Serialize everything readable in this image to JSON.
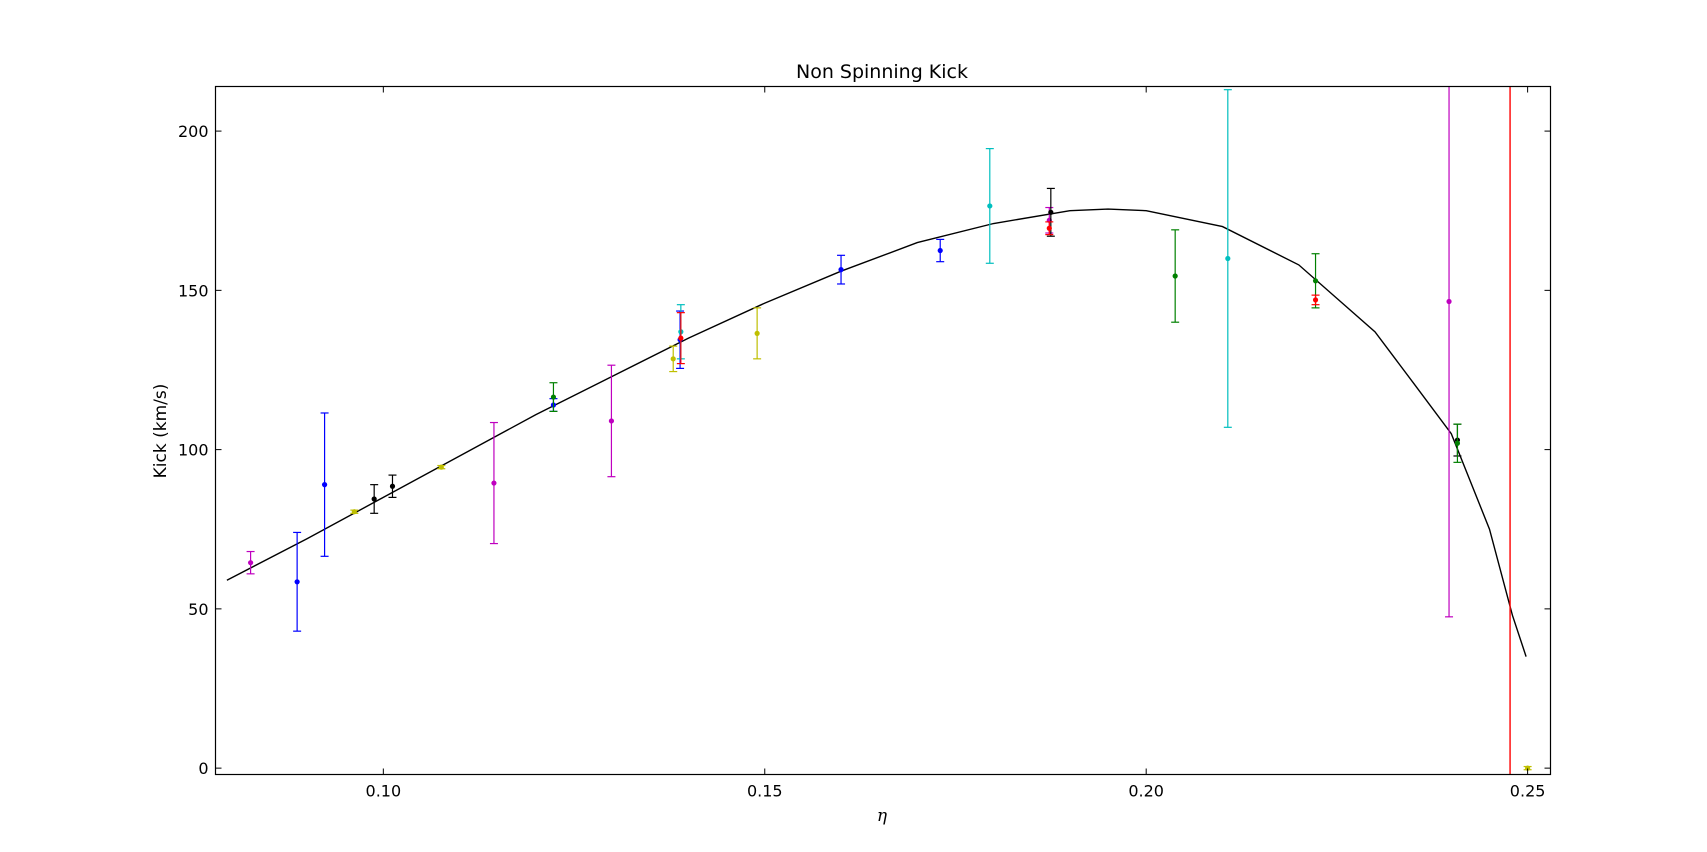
{
  "chart_data": {
    "type": "scatter",
    "title": "Non Spinning Kick",
    "xlabel": "η",
    "ylabel": "Kick (km/s)",
    "xlim": [
      0.078,
      0.253
    ],
    "ylim": [
      -2,
      214
    ],
    "xticks": [
      "0.10",
      "0.15",
      "0.20",
      "0.25"
    ],
    "xtick_values": [
      0.1,
      0.15,
      0.2,
      0.25
    ],
    "yticks": [
      "0",
      "50",
      "100",
      "150",
      "200"
    ],
    "ytick_values": [
      0,
      50,
      100,
      150,
      200
    ],
    "grid": false,
    "fit_curve": {
      "color": "#000000",
      "x": [
        0.0795,
        0.09,
        0.1,
        0.11,
        0.12,
        0.13,
        0.14,
        0.15,
        0.16,
        0.17,
        0.18,
        0.19,
        0.195,
        0.2,
        0.21,
        0.22,
        0.23,
        0.235,
        0.24,
        0.245,
        0.248,
        0.2498
      ],
      "y": [
        59,
        72,
        85,
        98,
        111,
        123,
        135,
        146,
        156,
        165,
        171,
        175,
        175.5,
        175,
        170,
        158,
        137,
        121,
        105,
        75,
        48,
        35
      ]
    },
    "vertical_line": {
      "x": 0.2477,
      "color": "#ff0000"
    },
    "errorbar_series": [
      {
        "color": "#bf00bf",
        "points": [
          {
            "x": 0.0826,
            "y": 64.5,
            "err": 3.5
          },
          {
            "x": 0.1145,
            "y": 89.5,
            "err": 19
          },
          {
            "x": 0.1299,
            "y": 109,
            "err": 17.5
          },
          {
            "x": 0.1873,
            "y": 172,
            "err": 4
          },
          {
            "x": 0.2397,
            "y": 146.5,
            "err": 99
          }
        ]
      },
      {
        "color": "#0000ff",
        "points": [
          {
            "x": 0.0887,
            "y": 58.5,
            "err": 15.5
          },
          {
            "x": 0.0923,
            "y": 89,
            "err": 22.5
          },
          {
            "x": 0.1223,
            "y": 114,
            "err": 2
          },
          {
            "x": 0.1389,
            "y": 134.5,
            "err": 9
          },
          {
            "x": 0.16,
            "y": 156.5,
            "err": 4.5
          },
          {
            "x": 0.173,
            "y": 162.5,
            "err": 3.5
          }
        ]
      },
      {
        "color": "#bfbf00",
        "points": [
          {
            "x": 0.0962,
            "y": 80.5,
            "err": 0.5
          },
          {
            "x": 0.1076,
            "y": 94.5,
            "err": 0.5
          },
          {
            "x": 0.138,
            "y": 128.5,
            "err": 4
          },
          {
            "x": 0.149,
            "y": 136.5,
            "err": 8
          },
          {
            "x": 0.25,
            "y": 0,
            "err": 0.5
          }
        ]
      },
      {
        "color": "#000000",
        "points": [
          {
            "x": 0.0988,
            "y": 84.5,
            "err": 4.5
          },
          {
            "x": 0.1012,
            "y": 88.5,
            "err": 3.5
          },
          {
            "x": 0.1875,
            "y": 174.5,
            "err": 7.5
          },
          {
            "x": 0.2408,
            "y": 103,
            "err": 5
          }
        ]
      },
      {
        "color": "#008000",
        "points": [
          {
            "x": 0.1223,
            "y": 116.5,
            "err": 4.5
          },
          {
            "x": 0.2038,
            "y": 154.5,
            "err": 14.5
          },
          {
            "x": 0.2222,
            "y": 153,
            "err": 8.5
          },
          {
            "x": 0.2408,
            "y": 102,
            "err": 6
          }
        ]
      },
      {
        "color": "#00bfbf",
        "points": [
          {
            "x": 0.139,
            "y": 137,
            "err": 8.5
          },
          {
            "x": 0.1795,
            "y": 176.5,
            "err": 18
          },
          {
            "x": 0.2107,
            "y": 160,
            "err": 53
          }
        ]
      },
      {
        "color": "#ff0000",
        "points": [
          {
            "x": 0.139,
            "y": 135,
            "err": 8
          },
          {
            "x": 0.1873,
            "y": 169.5,
            "err": 2
          },
          {
            "x": 0.2222,
            "y": 147,
            "err": 1.5
          }
        ]
      }
    ]
  }
}
